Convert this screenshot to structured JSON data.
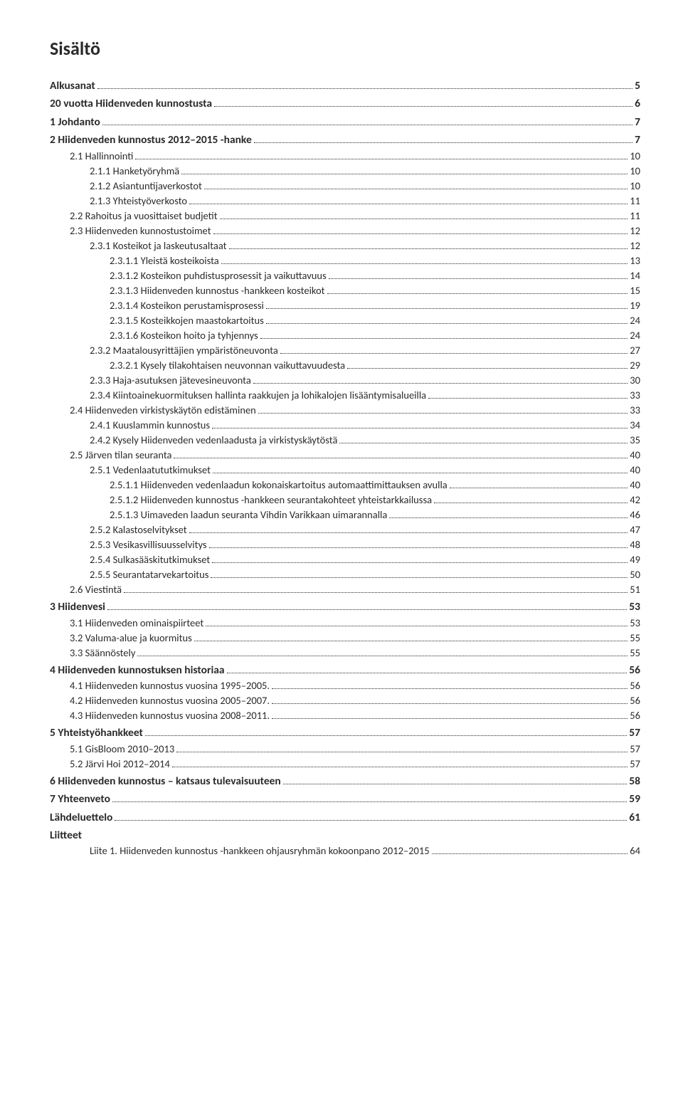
{
  "title": "Sisältö",
  "entries": [
    {
      "label": "Alkusanat",
      "page": "5",
      "level": 0,
      "bold": true
    },
    {
      "label": "20 vuotta Hiidenveden kunnostusta",
      "page": "6",
      "level": 0,
      "bold": true
    },
    {
      "label": "1   Johdanto",
      "page": "7",
      "level": 0,
      "bold": true
    },
    {
      "label": "2   Hiidenveden kunnostus 2012–2015 -hanke",
      "page": "7",
      "level": 0,
      "bold": true
    },
    {
      "label": "2.1   Hallinnointi",
      "page": "10",
      "level": 2
    },
    {
      "label": "2.1.1   Hanketyöryhmä",
      "page": "10",
      "level": 3
    },
    {
      "label": "2.1.2   Asiantuntijaverkostot",
      "page": "10",
      "level": 3
    },
    {
      "label": "2.1.3   Yhteistyöverkosto",
      "page": "11",
      "level": 3
    },
    {
      "label": "2.2   Rahoitus ja vuosittaiset budjetit",
      "page": "11",
      "level": 2
    },
    {
      "label": "2.3   Hiidenveden kunnostustoimet",
      "page": "12",
      "level": 2
    },
    {
      "label": "2.3.1   Kosteikot ja laskeutusaltaat",
      "page": "12",
      "level": 3
    },
    {
      "label": "2.3.1.1    Yleistä kosteikoista",
      "page": "13",
      "level": 4
    },
    {
      "label": "2.3.1.2    Kosteikon puhdistusprosessit ja vaikuttavuus",
      "page": "14",
      "level": 4
    },
    {
      "label": "2.3.1.3    Hiidenveden kunnostus -hankkeen kosteikot",
      "page": "15",
      "level": 4
    },
    {
      "label": "2.3.1.4    Kosteikon perustamisprosessi",
      "page": "19",
      "level": 4
    },
    {
      "label": "2.3.1.5    Kosteikkojen maastokartoitus",
      "page": "24",
      "level": 4
    },
    {
      "label": "2.3.1.6    Kosteikon hoito ja tyhjennys",
      "page": "24",
      "level": 4
    },
    {
      "label": "2.3.2   Maatalousyrittäjien ympäristöneuvonta",
      "page": "27",
      "level": 3
    },
    {
      "label": "2.3.2.1    Kysely tilakohtaisen neuvonnan vaikuttavuudesta",
      "page": "29",
      "level": 4
    },
    {
      "label": "2.3.3   Haja-asutuksen jätevesineuvonta",
      "page": "30",
      "level": 3
    },
    {
      "label": "2.3.4   Kiintoainekuormituksen hallinta raakkujen ja lohikalojen lisääntymisalueilla",
      "page": "33",
      "level": 3
    },
    {
      "label": "2.4   Hiidenveden virkistyskäytön edistäminen",
      "page": "33",
      "level": 2
    },
    {
      "label": "2.4.1   Kuuslammin kunnostus",
      "page": "34",
      "level": 3
    },
    {
      "label": "2.4.2   Kysely Hiidenveden vedenlaadusta ja virkistyskäytöstä",
      "page": "35",
      "level": 3
    },
    {
      "label": "2.5   Järven tilan seuranta",
      "page": "40",
      "level": 2
    },
    {
      "label": "2.5.1   Vedenlaatututkimukset",
      "page": "40",
      "level": 3
    },
    {
      "label": "2.5.1.1    Hiidenveden vedenlaadun kokonaiskartoitus automaattimittauksen avulla",
      "page": "40",
      "level": 4
    },
    {
      "label": "2.5.1.2    Hiidenveden kunnostus -hankkeen seurantakohteet yhteistarkkailussa",
      "page": "42",
      "level": 4
    },
    {
      "label": "2.5.1.3    Uimaveden laadun seuranta Vihdin Varikkaan uimarannalla",
      "page": "46",
      "level": 4
    },
    {
      "label": "2.5.2   Kalastoselvitykset",
      "page": "47",
      "level": 3
    },
    {
      "label": "2.5.3   Vesikasvillisuusselvitys",
      "page": "48",
      "level": 3
    },
    {
      "label": "2.5.4   Sulkasääskitutkimukset",
      "page": "49",
      "level": 3
    },
    {
      "label": "2.5.5   Seurantatarvekartoitus",
      "page": "50",
      "level": 3
    },
    {
      "label": "2.6   Viestintä",
      "page": "51",
      "level": 2
    },
    {
      "label": "3   Hiidenvesi",
      "page": "53",
      "level": 0,
      "bold": true
    },
    {
      "label": "3.1   Hiidenveden ominaispiirteet",
      "page": "53",
      "level": 2
    },
    {
      "label": "3.2   Valuma-alue ja kuormitus",
      "page": "55",
      "level": 2
    },
    {
      "label": "3.3   Säännöstely",
      "page": "55",
      "level": 2
    },
    {
      "label": "4   Hiidenveden kunnostuksen historiaa",
      "page": "56",
      "level": 0,
      "bold": true
    },
    {
      "label": "4.1   Hiidenveden kunnostus vuosina 1995–2005.",
      "page": "56",
      "level": 2
    },
    {
      "label": "4.2   Hiidenveden kunnostus vuosina 2005–2007.",
      "page": "56",
      "level": 2
    },
    {
      "label": "4.3   Hiidenveden kunnostus vuosina 2008–2011.",
      "page": "56",
      "level": 2
    },
    {
      "label": "5   Yhteistyöhankkeet",
      "page": "57",
      "level": 0,
      "bold": true
    },
    {
      "label": "5.1   GisBloom 2010–2013",
      "page": "57",
      "level": 2
    },
    {
      "label": "5.2   Järvi Hoi 2012–2014",
      "page": "57",
      "level": 2
    },
    {
      "label": "6   Hiidenveden kunnostus – katsaus tulevaisuuteen",
      "page": "58",
      "level": 0,
      "bold": true
    },
    {
      "label": "7   Yhteenveto",
      "page": "59",
      "level": 0,
      "bold": true
    },
    {
      "label": "Lähdeluettelo",
      "page": "61",
      "level": 0,
      "bold": true
    },
    {
      "label": "Liitteet",
      "page": "",
      "level": 0,
      "bold": true,
      "nodots": true
    },
    {
      "label": "Liite 1. Hiidenveden kunnostus -hankkeen ohjausryhmän kokoonpano 2012–2015",
      "page": "64",
      "level": 3
    }
  ]
}
